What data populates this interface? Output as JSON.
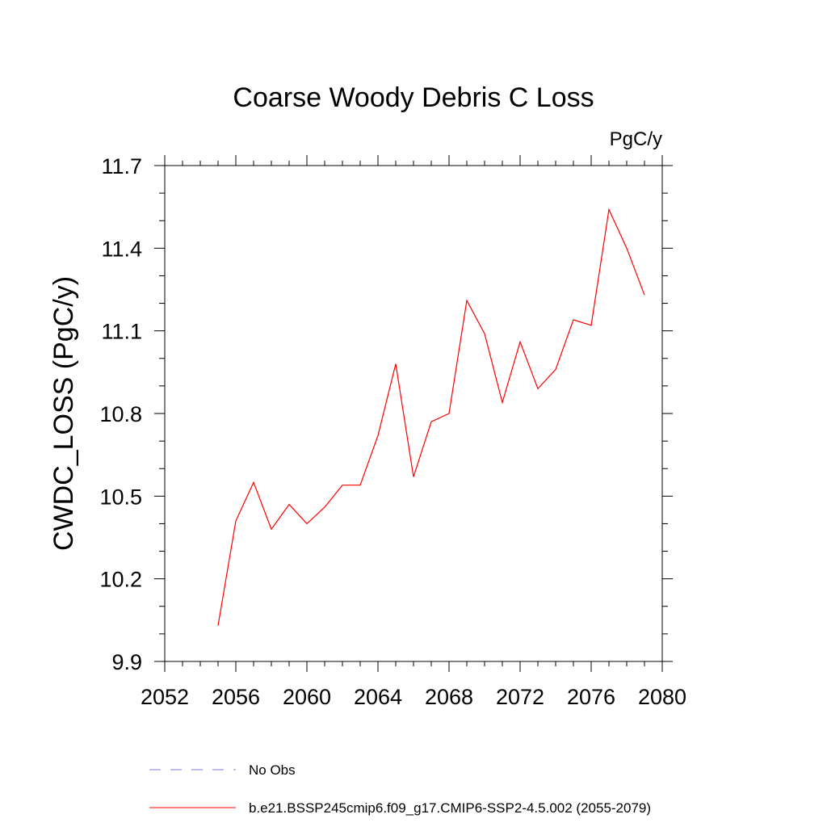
{
  "chart_data": {
    "type": "line",
    "title": "Coarse Woody Debris C Loss",
    "units_label": "PgC/y",
    "ylabel": "CWDC_LOSS  (PgC/y)",
    "xlabel": "",
    "xlim": [
      2052,
      2080
    ],
    "ylim": [
      9.9,
      11.7
    ],
    "x_ticks": [
      2052,
      2056,
      2060,
      2064,
      2068,
      2072,
      2076,
      2080
    ],
    "x_tick_labels": [
      "2052",
      "2056",
      "2060",
      "2064",
      "2068",
      "2072",
      "2076",
      "2080"
    ],
    "y_ticks": [
      9.9,
      10.2,
      10.5,
      10.8,
      11.1,
      11.4,
      11.7
    ],
    "y_tick_labels": [
      "9.9",
      "10.2",
      "10.5",
      "10.8",
      "11.1",
      "11.4",
      "11.7"
    ],
    "grid": false,
    "legend_position": "bottom",
    "series": [
      {
        "name": "b.e21.BSSP245cmip6.f09_g17.CMIP6-SSP2-4.5.002 (2055-2079)",
        "color": "#ff0000",
        "style": "solid",
        "x": [
          2055,
          2056,
          2057,
          2058,
          2059,
          2060,
          2061,
          2062,
          2063,
          2064,
          2065,
          2066,
          2067,
          2068,
          2069,
          2070,
          2071,
          2072,
          2073,
          2074,
          2075,
          2076,
          2077,
          2078,
          2079
        ],
        "values": [
          10.03,
          10.41,
          10.55,
          10.38,
          10.47,
          10.4,
          10.46,
          10.54,
          10.54,
          10.72,
          10.98,
          10.57,
          10.77,
          10.8,
          11.21,
          11.09,
          10.84,
          11.06,
          10.89,
          10.96,
          11.14,
          11.12,
          11.54,
          11.4,
          11.23
        ]
      },
      {
        "name": "No Obs",
        "color": "#7b7bd6",
        "style": "dashed",
        "x": [],
        "values": []
      }
    ]
  }
}
